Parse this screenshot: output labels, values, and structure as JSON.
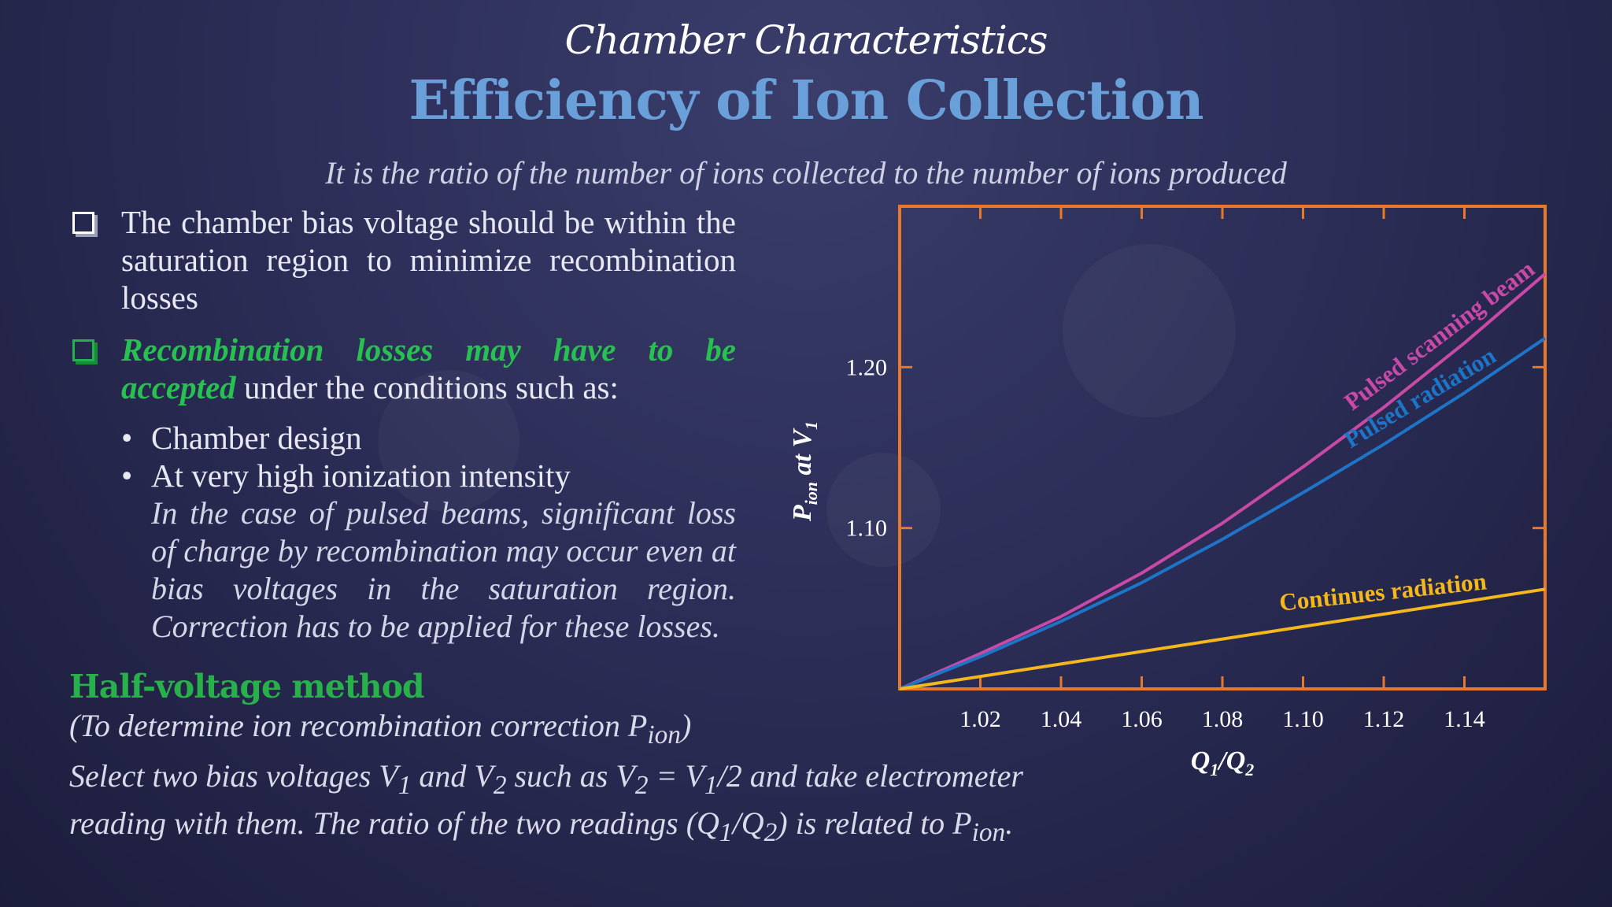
{
  "header": {
    "subtitle": "Chamber Characteristics",
    "title": "Efficiency of Ion Collection",
    "definition": "It is the ratio of the number of ions collected to the number of ions produced"
  },
  "bullets": {
    "item1": "The chamber bias voltage should be within the saturation region to minimize recombination losses",
    "item2_highlight": "Recombination losses may have to be accepted",
    "item2_rest": "under the conditions such as:",
    "sub1": "Chamber design",
    "sub2": "At very high ionization intensity",
    "sub2_note": "In the case of pulsed beams, significant loss of charge by recombination may occur even at bias voltages in the saturation region. Correction has to be applied for these losses.",
    "bullet_char": "•"
  },
  "method": {
    "heading": "Half-voltage method",
    "sub_prefix": "(To determine ion recombination correction P",
    "sub_subscript": "ion",
    "sub_suffix": ")",
    "desc_1": "Select two bias voltages V",
    "desc_1_sub": "1",
    "desc_2": " and V",
    "desc_2_sub": "2",
    "desc_3": " such as V",
    "desc_3_sub": "2",
    "desc_4": " = V",
    "desc_4_sub": "1",
    "desc_5": "/2 and take electrometer reading with them. The ratio of the two readings (Q",
    "desc_5_sub": "1",
    "desc_6": "/Q",
    "desc_6_sub": "2",
    "desc_7": ") is related to P",
    "desc_7_sub": "ion",
    "desc_8": "."
  },
  "colors": {
    "frame": "#e8782a",
    "pulsed_scanning": "#c94aa6",
    "pulsed_radiation": "#1e74c6",
    "continuous": "#f4b81c"
  },
  "chart_data": {
    "type": "line",
    "xlim": [
      1.0,
      1.16
    ],
    "ylim": [
      1.0,
      1.3
    ],
    "x_ticks": [
      "1.02",
      "1.04",
      "1.06",
      "1.08",
      "1.10",
      "1.12",
      "1.14"
    ],
    "y_ticks": [
      "1.10",
      "1.20"
    ],
    "xlabel_main": "Q",
    "xlabel_sub1": "1",
    "xlabel_mid": "/Q",
    "xlabel_sub2": "2",
    "ylabel_main": "P",
    "ylabel_sub1": "ion",
    "ylabel_mid": " at V",
    "ylabel_sub2": "1",
    "series": [
      {
        "name": "Pulsed scanning beam",
        "color": "#c94aa6",
        "x": [
          1.0,
          1.02,
          1.04,
          1.06,
          1.08,
          1.1,
          1.12,
          1.14,
          1.16
        ],
        "y": [
          1.0,
          1.022,
          1.045,
          1.072,
          1.103,
          1.138,
          1.175,
          1.215,
          1.258
        ]
      },
      {
        "name": "Pulsed radiation",
        "color": "#1e74c6",
        "x": [
          1.0,
          1.02,
          1.04,
          1.06,
          1.08,
          1.1,
          1.12,
          1.14,
          1.16
        ],
        "y": [
          1.0,
          1.02,
          1.042,
          1.066,
          1.093,
          1.122,
          1.152,
          1.184,
          1.218
        ]
      },
      {
        "name": "Continues radiation",
        "color": "#f4b81c",
        "x": [
          1.0,
          1.16
        ],
        "y": [
          1.0,
          1.062
        ]
      }
    ]
  }
}
